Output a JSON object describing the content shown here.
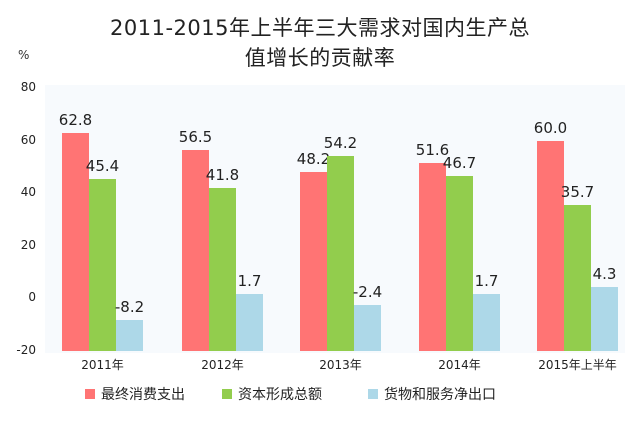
{
  "chart_data": {
    "type": "bar",
    "title": "2011-2015年上半年三大需求对国内生产总值增长的贡献率",
    "title_lines": [
      "2011-2015年上半年三大需求对国内生产总",
      "值增长的贡献率"
    ],
    "ylabel": "%",
    "xlabel": "",
    "ylim": [
      -20,
      80
    ],
    "yticks": [
      "80",
      "60",
      "40",
      "20",
      "0",
      "-20"
    ],
    "categories": [
      "2011年",
      "2012年",
      "2013年",
      "2014年",
      "2015年上半年"
    ],
    "series": [
      {
        "name": "最终消费支出",
        "color": "#ff7474",
        "values": [
          62.8,
          56.5,
          48.2,
          51.6,
          60.0
        ],
        "labels": [
          "62.8",
          "56.5",
          "48.2",
          "51.6",
          "60.0"
        ]
      },
      {
        "name": "资本形成总额",
        "color": "#92cd4d",
        "values": [
          45.4,
          41.8,
          54.2,
          46.7,
          35.7
        ],
        "labels": [
          "45.4",
          "41.8",
          "54.2",
          "46.7",
          "35.7"
        ]
      },
      {
        "name": "货物和服务净出口",
        "color": "#add8e8",
        "values": [
          -8.2,
          1.7,
          -2.4,
          1.7,
          4.3
        ],
        "labels": [
          "-8.2",
          "1.7",
          "-2.4",
          "1.7",
          "4.3"
        ]
      }
    ],
    "grid": false,
    "legend_position": "bottom"
  }
}
